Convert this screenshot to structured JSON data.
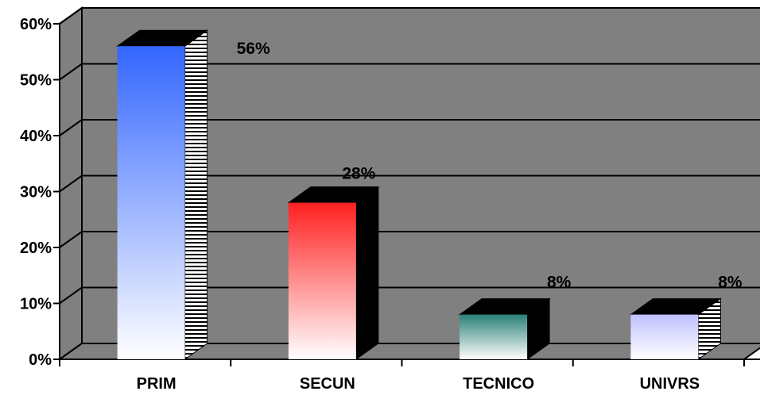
{
  "chart_data": {
    "type": "bar",
    "categories": [
      "PRIM",
      "SECUN",
      "TECNICO",
      "UNIVRS"
    ],
    "values": [
      56,
      28,
      8,
      8
    ],
    "data_labels": [
      "56%",
      "28%",
      "8%",
      "8%"
    ],
    "ylim": [
      0,
      60
    ],
    "yticks": [
      {
        "value": 0,
        "label": "0%"
      },
      {
        "value": 10,
        "label": "10%"
      },
      {
        "value": 20,
        "label": "20%"
      },
      {
        "value": 30,
        "label": "30%"
      },
      {
        "value": 40,
        "label": "40%"
      },
      {
        "value": 50,
        "label": "50%"
      },
      {
        "value": 60,
        "label": "60%"
      }
    ],
    "grid": true,
    "three_d": true,
    "legend": "none",
    "background_color": "#808080",
    "bar_colors": [
      "#3366ff",
      "#ff2020",
      "#2a8078",
      "#c0c0ff"
    ]
  }
}
